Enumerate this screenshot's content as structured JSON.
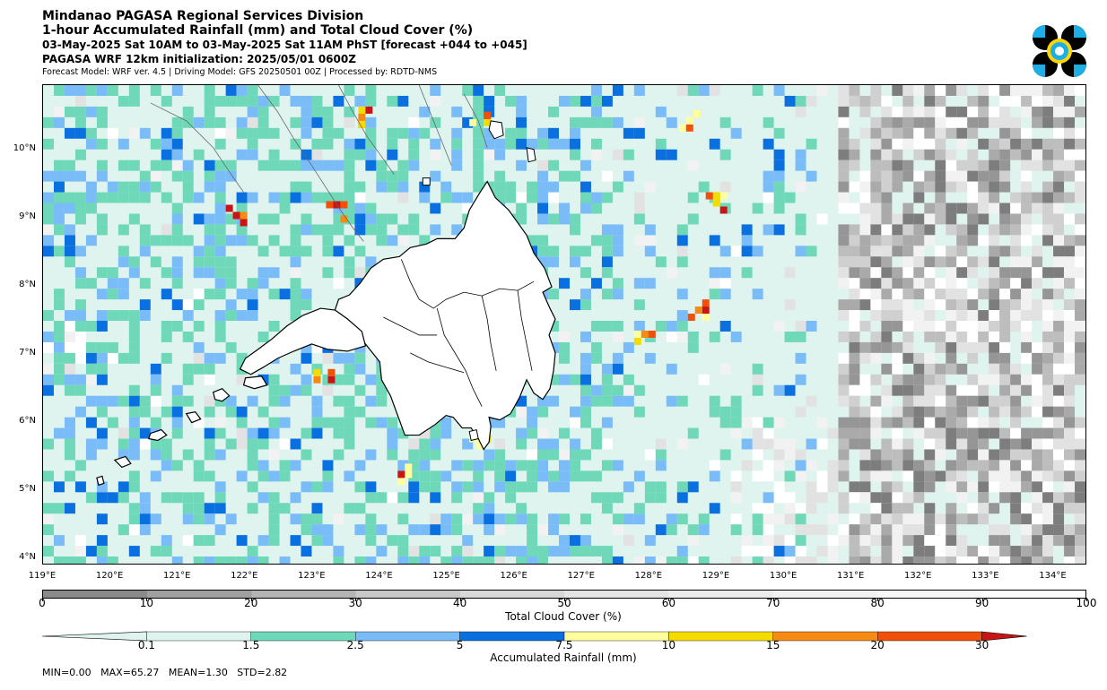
{
  "header": {
    "org": "Mindanao PAGASA Regional Services Division",
    "product": "1-hour Accumulated Rainfall (mm) and Total Cloud Cover (%)",
    "valid_time": "03-May-2025 Sat 10AM to 03-May-2025 Sat 11AM PhST [forecast +044 to +045]",
    "init": "PAGASA WRF 12km initialization: 2025/05/01 0600Z",
    "credits": "Forecast Model: WRF ver. 4.5 | Driving Model: GFS 20250501 00Z | Processed by: RDTD-NMS"
  },
  "map": {
    "lat_labels": [
      "10°N",
      "9°N",
      "8°N",
      "7°N",
      "6°N",
      "5°N",
      "4°N"
    ],
    "lon_labels": [
      "119°E",
      "120°E",
      "121°E",
      "122°E",
      "123°E",
      "124°E",
      "125°E",
      "126°E",
      "127°E",
      "128°E",
      "129°E",
      "130°E",
      "131°E",
      "132°E",
      "133°E",
      "134°E"
    ],
    "lat_range": [
      3.9,
      10.95
    ],
    "lon_range": [
      119.0,
      134.5
    ]
  },
  "cloud_cover_legend": {
    "title": "Total Cloud Cover (%)",
    "ticks": [
      "0",
      "10",
      "20",
      "30",
      "40",
      "50",
      "60",
      "70",
      "80",
      "90",
      "100"
    ],
    "colors": [
      "#8a8a8a",
      "#a0a0a0",
      "#b4b4b4",
      "#c8c8c8",
      "#d8d8d8",
      "#e4e4e4",
      "#ececec",
      "#f2f2f2",
      "#f7f7f7",
      "#fcfcfc"
    ]
  },
  "rainfall_legend": {
    "title": "Accumulated Rainfall (mm)",
    "ticks": [
      "0.1",
      "1.5",
      "2.5",
      "5",
      "7.5",
      "10",
      "15",
      "20",
      "30"
    ],
    "colors": [
      "#dff4ee",
      "#6fd8b8",
      "#7abcf8",
      "#0a70e0",
      "#ffff9e",
      "#f5dc00",
      "#f58a14",
      "#f0500a",
      "#c81414"
    ]
  },
  "stats": {
    "text": "MIN=0.00   MAX=65.27   MEAN=1.30   STD=2.82"
  },
  "logo": {
    "colors": [
      "#000000",
      "#1eaee6",
      "#ffd400"
    ]
  }
}
